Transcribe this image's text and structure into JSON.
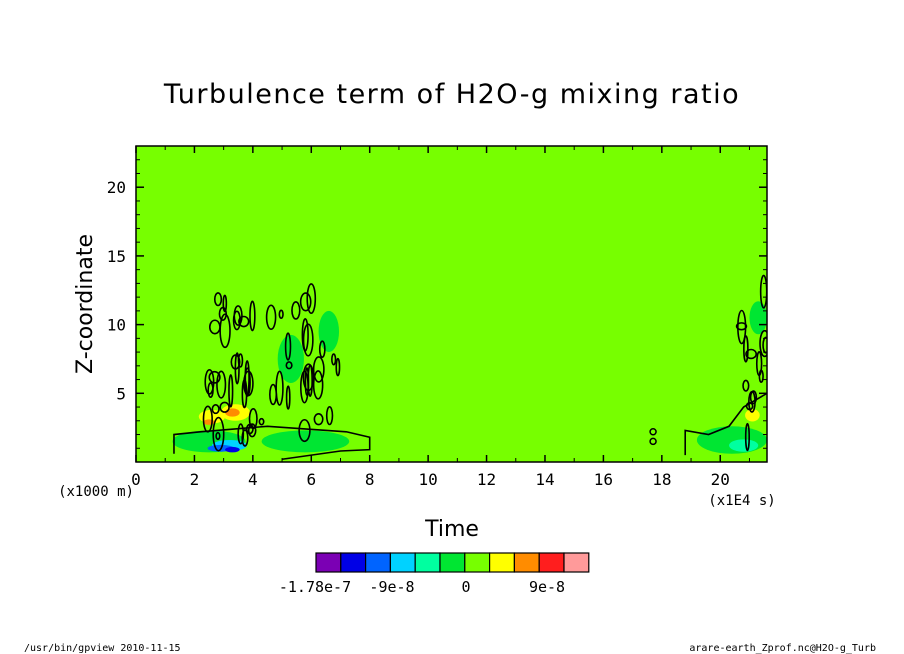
{
  "chart_data": {
    "type": "heatmap",
    "title": "Turbulence term of H2O-g mixing ratio",
    "xlabel": "Time",
    "ylabel": "Z-coordinate",
    "x_unit": "(x1E4 s)",
    "y_unit": "(x1000 m)",
    "xlim": [
      0,
      21.6
    ],
    "ylim": [
      0,
      23
    ],
    "x_ticks": [
      0,
      2,
      4,
      6,
      8,
      10,
      12,
      14,
      16,
      18,
      20
    ],
    "y_ticks": [
      5,
      10,
      15,
      20
    ],
    "background_color": "#77ff00",
    "colorbar": {
      "colors": [
        "#7b00b4",
        "#0000e6",
        "#0064ff",
        "#00d2ff",
        "#00ffa0",
        "#00e632",
        "#77ff00",
        "#ffff00",
        "#ff8c00",
        "#ff1e1e",
        "#ff9a9a"
      ],
      "labels": [
        "-1.78e-7",
        "-9e-8",
        "0",
        "9e-8"
      ]
    },
    "features": [
      {
        "x": 2.5,
        "z": 1.5,
        "w": 2.5,
        "h": 1.6,
        "color": "#00e632"
      },
      {
        "x": 3.2,
        "z": 1.2,
        "w": 1.2,
        "h": 0.8,
        "color": "#00d2ff"
      },
      {
        "x": 2.9,
        "z": 1.0,
        "w": 0.9,
        "h": 0.5,
        "color": "#0064ff"
      },
      {
        "x": 3.3,
        "z": 0.9,
        "w": 0.5,
        "h": 0.4,
        "color": "#0000e6"
      },
      {
        "x": 2.6,
        "z": 3.3,
        "w": 0.9,
        "h": 1.0,
        "color": "#ffff00"
      },
      {
        "x": 3.4,
        "z": 3.6,
        "w": 1.0,
        "h": 1.2,
        "color": "#ffff00"
      },
      {
        "x": 3.3,
        "z": 3.6,
        "w": 0.5,
        "h": 0.6,
        "color": "#ff8c00"
      },
      {
        "x": 2.5,
        "z": 2.9,
        "w": 0.4,
        "h": 0.4,
        "color": "#ff8c00"
      },
      {
        "x": 5.8,
        "z": 1.5,
        "w": 3.0,
        "h": 1.6,
        "color": "#00e632"
      },
      {
        "x": 5.3,
        "z": 7.5,
        "w": 0.9,
        "h": 3.5,
        "color": "#00e632"
      },
      {
        "x": 6.6,
        "z": 9.5,
        "w": 0.7,
        "h": 3.0,
        "color": "#00e632"
      },
      {
        "x": 20.4,
        "z": 1.6,
        "w": 2.4,
        "h": 2.0,
        "color": "#00e632"
      },
      {
        "x": 20.8,
        "z": 1.2,
        "w": 1.0,
        "h": 0.9,
        "color": "#00ffa0"
      },
      {
        "x": 21.1,
        "z": 3.4,
        "w": 0.5,
        "h": 0.9,
        "color": "#ffff00"
      },
      {
        "x": 21.3,
        "z": 10.5,
        "w": 0.6,
        "h": 2.4,
        "color": "#00e632"
      }
    ]
  },
  "footer": {
    "left": "/usr/bin/gpview   2010-11-15",
    "right": "arare-earth_Zprof.nc@H2O-g_Turb"
  }
}
